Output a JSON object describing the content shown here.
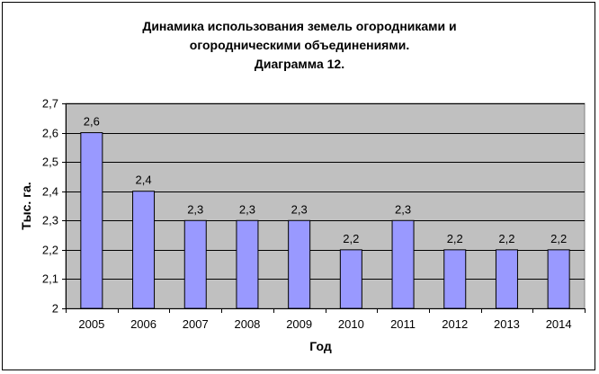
{
  "chart_data": {
    "type": "bar",
    "title_lines": [
      "Динамика использования земель огородниками  и",
      "огородническими объединениями.",
      "Диаграмма 12."
    ],
    "xlabel": "Год",
    "ylabel": "Тыс. га.",
    "categories": [
      "2005",
      "2006",
      "2007",
      "2008",
      "2009",
      "2010",
      "2011",
      "2012",
      "2013",
      "2014"
    ],
    "values": [
      2.6,
      2.4,
      2.3,
      2.3,
      2.3,
      2.2,
      2.3,
      2.2,
      2.2,
      2.2
    ],
    "data_labels": [
      "2,6",
      "2,4",
      "2,3",
      "2,3",
      "2,3",
      "2,2",
      "2,3",
      "2,2",
      "2,2",
      "2,2"
    ],
    "ylim": [
      2,
      2.7
    ],
    "yticks": [
      "2",
      "2,1",
      "2,2",
      "2,3",
      "2,4",
      "2,5",
      "2,6",
      "2,7"
    ],
    "grid": true,
    "legend": "none",
    "colors": {
      "plot_background": "#c0c0c0",
      "bar_fill": "#9999ff",
      "bar_stroke": "#000000",
      "gridline": "#000000"
    }
  }
}
